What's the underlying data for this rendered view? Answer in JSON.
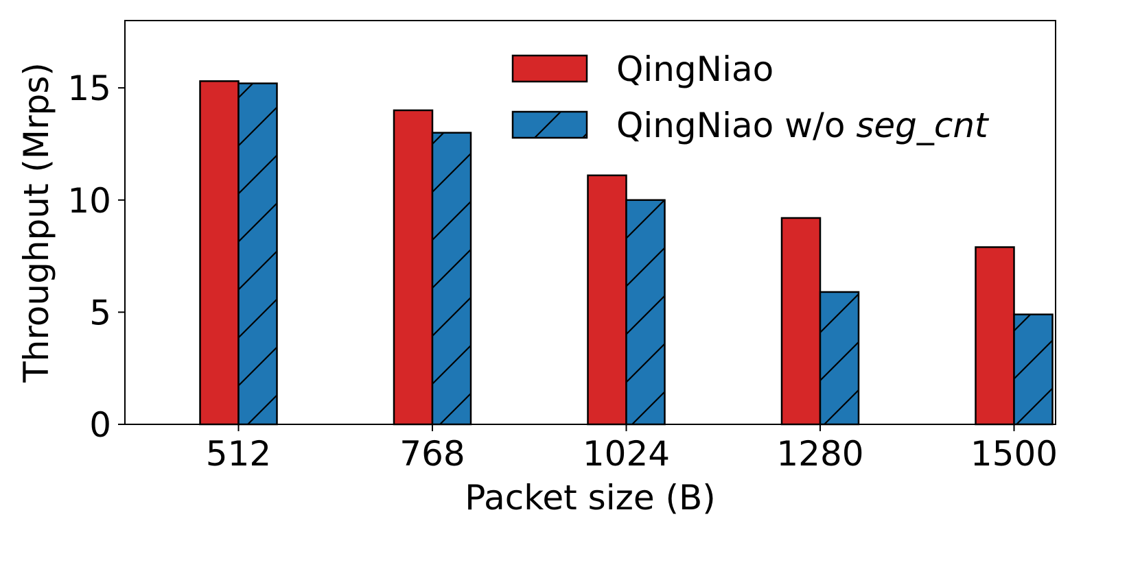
{
  "chart_data": {
    "type": "bar",
    "categories": [
      "512",
      "768",
      "1024",
      "1280",
      "1500"
    ],
    "series": [
      {
        "name": "QingNiao",
        "values": [
          15.3,
          14.0,
          11.1,
          9.2,
          7.9
        ],
        "color": "#d62728",
        "hatch": "none"
      },
      {
        "name": "QingNiao w/o seg_cnt",
        "name_plain": "QingNiao w/o ",
        "name_italic": "seg_cnt",
        "values": [
          15.2,
          13.0,
          10.0,
          5.9,
          4.9
        ],
        "color": "#1f77b4",
        "hatch": "diagonal"
      }
    ],
    "xlabel": "Packet size (B)",
    "ylabel": "Throughput (Mrps)",
    "ylim": [
      0,
      18
    ],
    "yticks": [
      0,
      5,
      10,
      15
    ],
    "grid": false,
    "legend_position": "top-right"
  }
}
